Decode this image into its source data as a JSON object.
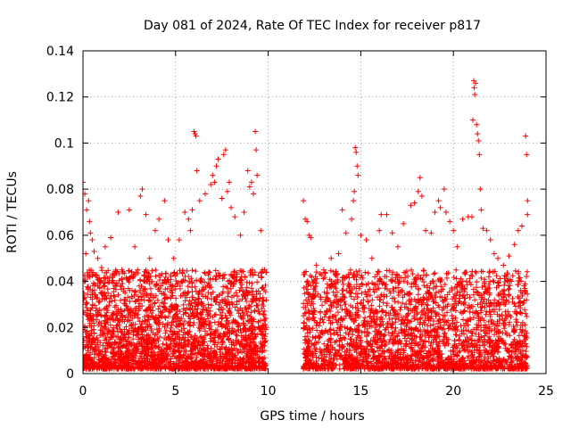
{
  "chart_data": {
    "type": "scatter",
    "title": "Day 081 of 2024, Rate Of TEC Index for receiver p817",
    "xlabel": "GPS time / hours",
    "ylabel": "ROTI / TECUs",
    "xlim": [
      0,
      25
    ],
    "ylim": [
      0,
      0.14
    ],
    "xticks": [
      0,
      5,
      10,
      15,
      20,
      25
    ],
    "yticks": [
      0,
      0.02,
      0.04,
      0.06,
      0.08,
      0.1,
      0.12,
      0.14
    ],
    "xtick_labels": [
      "0",
      "5",
      "10",
      "15",
      "20",
      "25"
    ],
    "ytick_labels": [
      "0",
      "0.02",
      "0.04",
      "0.06",
      "0.08",
      "0.1",
      "0.12",
      "0.14"
    ],
    "grid": true,
    "marker": "plus",
    "marker_color": "#ff0000",
    "series": [
      {
        "name": "ROTI",
        "points": [
          [
            0.0,
            0.083
          ],
          [
            0.1,
            0.078
          ],
          [
            0.15,
            0.052
          ],
          [
            0.2,
            0.071
          ],
          [
            0.3,
            0.075
          ],
          [
            0.35,
            0.066
          ],
          [
            0.4,
            0.061
          ],
          [
            0.5,
            0.058
          ],
          [
            0.6,
            0.053
          ],
          [
            0.8,
            0.05
          ],
          [
            1.0,
            0.046
          ],
          [
            1.2,
            0.055
          ],
          [
            1.5,
            0.059
          ],
          [
            1.9,
            0.07
          ],
          [
            2.1,
            0.045
          ],
          [
            2.5,
            0.071
          ],
          [
            2.8,
            0.055
          ],
          [
            3.1,
            0.077
          ],
          [
            3.2,
            0.08
          ],
          [
            3.4,
            0.069
          ],
          [
            3.6,
            0.05
          ],
          [
            3.9,
            0.062
          ],
          [
            4.1,
            0.067
          ],
          [
            4.4,
            0.075
          ],
          [
            4.6,
            0.058
          ],
          [
            4.9,
            0.05
          ],
          [
            5.2,
            0.058
          ],
          [
            5.5,
            0.07
          ],
          [
            5.7,
            0.067
          ],
          [
            5.8,
            0.062
          ],
          [
            5.9,
            0.071
          ],
          [
            6.0,
            0.105
          ],
          [
            6.05,
            0.104
          ],
          [
            6.1,
            0.103
          ],
          [
            6.15,
            0.088
          ],
          [
            6.3,
            0.075
          ],
          [
            6.6,
            0.078
          ],
          [
            6.9,
            0.082
          ],
          [
            7.0,
            0.086
          ],
          [
            7.1,
            0.083
          ],
          [
            7.2,
            0.09
          ],
          [
            7.3,
            0.093
          ],
          [
            7.5,
            0.076
          ],
          [
            7.6,
            0.095
          ],
          [
            7.7,
            0.097
          ],
          [
            7.8,
            0.079
          ],
          [
            7.9,
            0.083
          ],
          [
            8.0,
            0.072
          ],
          [
            8.2,
            0.068
          ],
          [
            8.5,
            0.06
          ],
          [
            8.7,
            0.07
          ],
          [
            8.9,
            0.088
          ],
          [
            9.0,
            0.081
          ],
          [
            9.1,
            0.083
          ],
          [
            9.2,
            0.078
          ],
          [
            9.3,
            0.105
          ],
          [
            9.35,
            0.097
          ],
          [
            9.4,
            0.086
          ],
          [
            9.6,
            0.062
          ],
          [
            9.8,
            0.045
          ],
          [
            9.9,
            0.044
          ],
          [
            11.9,
            0.075
          ],
          [
            12.0,
            0.067
          ],
          [
            12.1,
            0.066
          ],
          [
            12.2,
            0.06
          ],
          [
            12.3,
            0.059
          ],
          [
            12.6,
            0.047
          ],
          [
            13.0,
            0.045
          ],
          [
            13.4,
            0.05
          ],
          [
            13.8,
            0.052
          ],
          [
            14.0,
            0.071
          ],
          [
            14.2,
            0.061
          ],
          [
            14.5,
            0.067
          ],
          [
            14.6,
            0.075
          ],
          [
            14.65,
            0.079
          ],
          [
            14.7,
            0.098
          ],
          [
            14.75,
            0.096
          ],
          [
            14.8,
            0.09
          ],
          [
            14.85,
            0.086
          ],
          [
            15.0,
            0.06
          ],
          [
            15.3,
            0.058
          ],
          [
            15.6,
            0.05
          ],
          [
            16.0,
            0.062
          ],
          [
            16.1,
            0.069
          ],
          [
            16.4,
            0.069
          ],
          [
            16.7,
            0.061
          ],
          [
            17.0,
            0.055
          ],
          [
            17.3,
            0.065
          ],
          [
            17.7,
            0.073
          ],
          [
            17.9,
            0.074
          ],
          [
            18.1,
            0.079
          ],
          [
            18.2,
            0.085
          ],
          [
            18.3,
            0.077
          ],
          [
            18.5,
            0.062
          ],
          [
            18.8,
            0.061
          ],
          [
            19.0,
            0.07
          ],
          [
            19.2,
            0.075
          ],
          [
            19.3,
            0.072
          ],
          [
            19.5,
            0.08
          ],
          [
            19.6,
            0.07
          ],
          [
            19.8,
            0.066
          ],
          [
            20.0,
            0.062
          ],
          [
            20.2,
            0.055
          ],
          [
            20.5,
            0.067
          ],
          [
            20.8,
            0.068
          ],
          [
            21.0,
            0.068
          ],
          [
            21.05,
            0.11
          ],
          [
            21.1,
            0.127
          ],
          [
            21.12,
            0.124
          ],
          [
            21.15,
            0.121
          ],
          [
            21.2,
            0.126
          ],
          [
            21.25,
            0.108
          ],
          [
            21.3,
            0.104
          ],
          [
            21.35,
            0.101
          ],
          [
            21.4,
            0.095
          ],
          [
            21.45,
            0.08
          ],
          [
            21.5,
            0.071
          ],
          [
            21.6,
            0.063
          ],
          [
            21.8,
            0.062
          ],
          [
            22.0,
            0.058
          ],
          [
            22.2,
            0.052
          ],
          [
            22.4,
            0.05
          ],
          [
            22.7,
            0.047
          ],
          [
            23.0,
            0.051
          ],
          [
            23.3,
            0.056
          ],
          [
            23.5,
            0.062
          ],
          [
            23.7,
            0.064
          ],
          [
            23.9,
            0.103
          ],
          [
            23.95,
            0.095
          ],
          [
            24.0,
            0.075
          ],
          [
            24.0,
            0.069
          ]
        ]
      }
    ],
    "dense_bands": [
      {
        "x_range": [
          0.0,
          9.9
        ],
        "y_range": [
          0.002,
          0.045
        ],
        "note": "dense continuous ROTI values"
      },
      {
        "x_range": [
          11.9,
          24.0
        ],
        "y_range": [
          0.002,
          0.045
        ],
        "note": "dense continuous ROTI values"
      }
    ],
    "data_gap_hours": [
      9.9,
      11.9
    ]
  }
}
